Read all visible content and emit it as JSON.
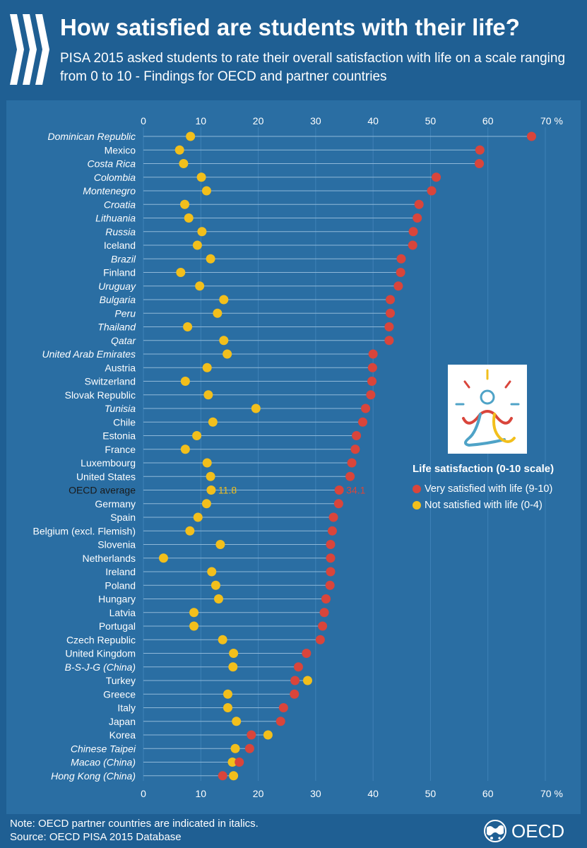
{
  "header": {
    "title": "How satisfied are students with their life?",
    "subtitle": "PISA 2015 asked students to rate their overall satisfaction with life on a scale ranging from 0 to 10 - Findings for OECD and partner countries"
  },
  "footer": {
    "note": "Note: OECD partner countries are indicated in italics.",
    "source": "Source: OECD PISA 2015 Database",
    "logo_text": "OECD"
  },
  "legend": {
    "title": "Life satisfaction (0-10 scale)",
    "items": [
      {
        "label": "Very satisfied with life (9-10)",
        "color": "#d9453b"
      },
      {
        "label": "Not satisfied with life (0-4)",
        "color": "#f2bf1c"
      }
    ]
  },
  "icons": {
    "logo": "oecd-chevrons-icon",
    "illustration": "meditating-figure-icon",
    "footer_logo": "oecd-globe-icon"
  },
  "colors": {
    "background": "#1f5f93",
    "panel": "#2a6ea3",
    "very_satisfied": "#d9453b",
    "not_satisfied": "#f2bf1c",
    "oecd_average_label": "#1a1a1a"
  },
  "chart_data": {
    "type": "scatter",
    "x_ticks": [
      "0",
      "10",
      "20",
      "30",
      "40",
      "50",
      "60",
      "70 %"
    ],
    "xlim": [
      0,
      70
    ],
    "grid": true,
    "legend_position": "right",
    "series_names": [
      "Very satisfied with life (9-10)",
      "Not satisfied with life (0-4)"
    ],
    "average_labels": {
      "very_satisfied": "34.1",
      "not_satisfied": "11.8"
    },
    "rows": [
      {
        "country": "Dominican Republic",
        "very": 67.6,
        "not": 8.2,
        "italic": true
      },
      {
        "country": "Mexico",
        "very": 58.6,
        "not": 6.3,
        "italic": false
      },
      {
        "country": "Costa Rica",
        "very": 58.5,
        "not": 7.0,
        "italic": true
      },
      {
        "country": "Colombia",
        "very": 51.0,
        "not": 10.1,
        "italic": true
      },
      {
        "country": "Montenegro",
        "very": 50.2,
        "not": 11.0,
        "italic": true
      },
      {
        "country": "Croatia",
        "very": 48.0,
        "not": 7.2,
        "italic": true
      },
      {
        "country": "Lithuania",
        "very": 47.7,
        "not": 7.9,
        "italic": true
      },
      {
        "country": "Russia",
        "very": 47.0,
        "not": 10.2,
        "italic": true
      },
      {
        "country": "Iceland",
        "very": 46.9,
        "not": 9.4,
        "italic": false
      },
      {
        "country": "Brazil",
        "very": 44.9,
        "not": 11.7,
        "italic": true
      },
      {
        "country": "Finland",
        "very": 44.8,
        "not": 6.5,
        "italic": false
      },
      {
        "country": "Uruguay",
        "very": 44.4,
        "not": 9.8,
        "italic": true
      },
      {
        "country": "Bulgaria",
        "very": 43.0,
        "not": 14.0,
        "italic": true
      },
      {
        "country": "Peru",
        "very": 43.0,
        "not": 12.9,
        "italic": true
      },
      {
        "country": "Thailand",
        "very": 42.8,
        "not": 7.7,
        "italic": true
      },
      {
        "country": "Qatar",
        "very": 42.8,
        "not": 14.0,
        "italic": true
      },
      {
        "country": "United Arab Emirates",
        "very": 40.0,
        "not": 14.6,
        "italic": true
      },
      {
        "country": "Austria",
        "very": 39.9,
        "not": 11.1,
        "italic": false
      },
      {
        "country": "Switzerland",
        "very": 39.8,
        "not": 7.3,
        "italic": false
      },
      {
        "country": "Slovak Republic",
        "very": 39.6,
        "not": 11.3,
        "italic": false
      },
      {
        "country": "Tunisia",
        "very": 38.7,
        "not": 19.6,
        "italic": true
      },
      {
        "country": "Chile",
        "very": 38.2,
        "not": 12.1,
        "italic": false
      },
      {
        "country": "Estonia",
        "very": 37.1,
        "not": 9.3,
        "italic": false
      },
      {
        "country": "France",
        "very": 36.9,
        "not": 7.3,
        "italic": false
      },
      {
        "country": "Luxembourg",
        "very": 36.3,
        "not": 11.1,
        "italic": false
      },
      {
        "country": "United States",
        "very": 36.0,
        "not": 11.7,
        "italic": false
      },
      {
        "country": "OECD average",
        "very": 34.1,
        "not": 11.8,
        "italic": false,
        "average": true
      },
      {
        "country": "Germany",
        "very": 34.0,
        "not": 11.0,
        "italic": false
      },
      {
        "country": "Spain",
        "very": 33.1,
        "not": 9.5,
        "italic": false
      },
      {
        "country": "Belgium (excl. Flemish)",
        "very": 32.9,
        "not": 8.1,
        "italic": false
      },
      {
        "country": "Slovenia",
        "very": 32.6,
        "not": 13.4,
        "italic": false
      },
      {
        "country": "Netherlands",
        "very": 32.6,
        "not": 3.5,
        "italic": false
      },
      {
        "country": "Ireland",
        "very": 32.6,
        "not": 11.9,
        "italic": false
      },
      {
        "country": "Poland",
        "very": 32.5,
        "not": 12.6,
        "italic": false
      },
      {
        "country": "Hungary",
        "very": 31.8,
        "not": 13.1,
        "italic": false
      },
      {
        "country": "Latvia",
        "very": 31.5,
        "not": 8.8,
        "italic": false
      },
      {
        "country": "Portugal",
        "very": 31.2,
        "not": 8.8,
        "italic": false
      },
      {
        "country": "Czech Republic",
        "very": 30.8,
        "not": 13.8,
        "italic": false
      },
      {
        "country": "United Kingdom",
        "very": 28.4,
        "not": 15.7,
        "italic": false
      },
      {
        "country": "B-S-J-G (China)",
        "very": 27.0,
        "not": 15.6,
        "italic": true
      },
      {
        "country": "Turkey",
        "very": 26.4,
        "not": 28.6,
        "italic": false
      },
      {
        "country": "Greece",
        "very": 26.3,
        "not": 14.7,
        "italic": false
      },
      {
        "country": "Italy",
        "very": 24.4,
        "not": 14.7,
        "italic": false
      },
      {
        "country": "Japan",
        "very": 23.9,
        "not": 16.2,
        "italic": false
      },
      {
        "country": "Korea",
        "very": 18.8,
        "not": 21.7,
        "italic": false
      },
      {
        "country": "Chinese Taipei",
        "very": 18.5,
        "not": 16.0,
        "italic": true
      },
      {
        "country": "Macao (China)",
        "very": 16.7,
        "not": 15.5,
        "italic": true
      },
      {
        "country": "Hong Kong (China)",
        "very": 13.8,
        "not": 15.7,
        "italic": true
      }
    ]
  }
}
